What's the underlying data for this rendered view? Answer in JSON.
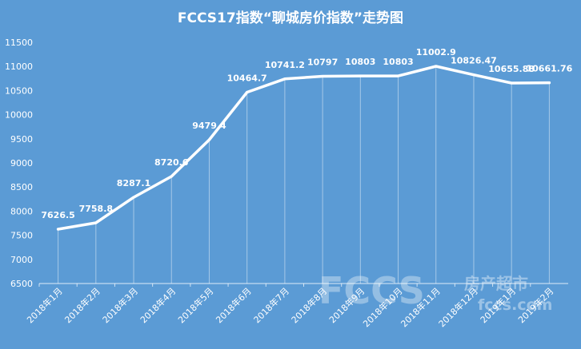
{
  "chart_data": {
    "type": "line",
    "title": "FCCS17指数“聊城房价指数”走势图",
    "categories": [
      "2018年1月",
      "2018年2月",
      "2018年3月",
      "2018年4月",
      "2018年5月",
      "2018年6月",
      "2018年7月",
      "2018年8月",
      "2018年9月",
      "2018年10月",
      "2018年11月",
      "2018年12月",
      "2019年1月",
      "2019年2月"
    ],
    "series": [
      {
        "values": [
          7626.5,
          7758.8,
          8287.1,
          8720.6,
          9479.4,
          10464.7,
          10741.2,
          10797,
          10803,
          10803,
          11002.9,
          10826.47,
          10655.88,
          10661.76
        ]
      }
    ],
    "data_labels": [
      "7626.5",
      "7758.8",
      "8287.1",
      "8720.6",
      "9479.4",
      "10464.7",
      "10741.2",
      "10797",
      "10803",
      "10803",
      "11002.9",
      "10826.47",
      "10655.88",
      "10661.76"
    ],
    "y_ticks": [
      "6500",
      "7000",
      "7500",
      "8000",
      "8500",
      "9000",
      "9500",
      "10000",
      "10500",
      "11000",
      "11500"
    ],
    "ylim": [
      6500,
      11500
    ],
    "grid": false,
    "colors": {
      "background": "#5b9bd5",
      "line": "#ffffff"
    }
  },
  "watermark": {
    "logo": "FCCS",
    "cn": "房产超市",
    "url": "fccs.com"
  }
}
